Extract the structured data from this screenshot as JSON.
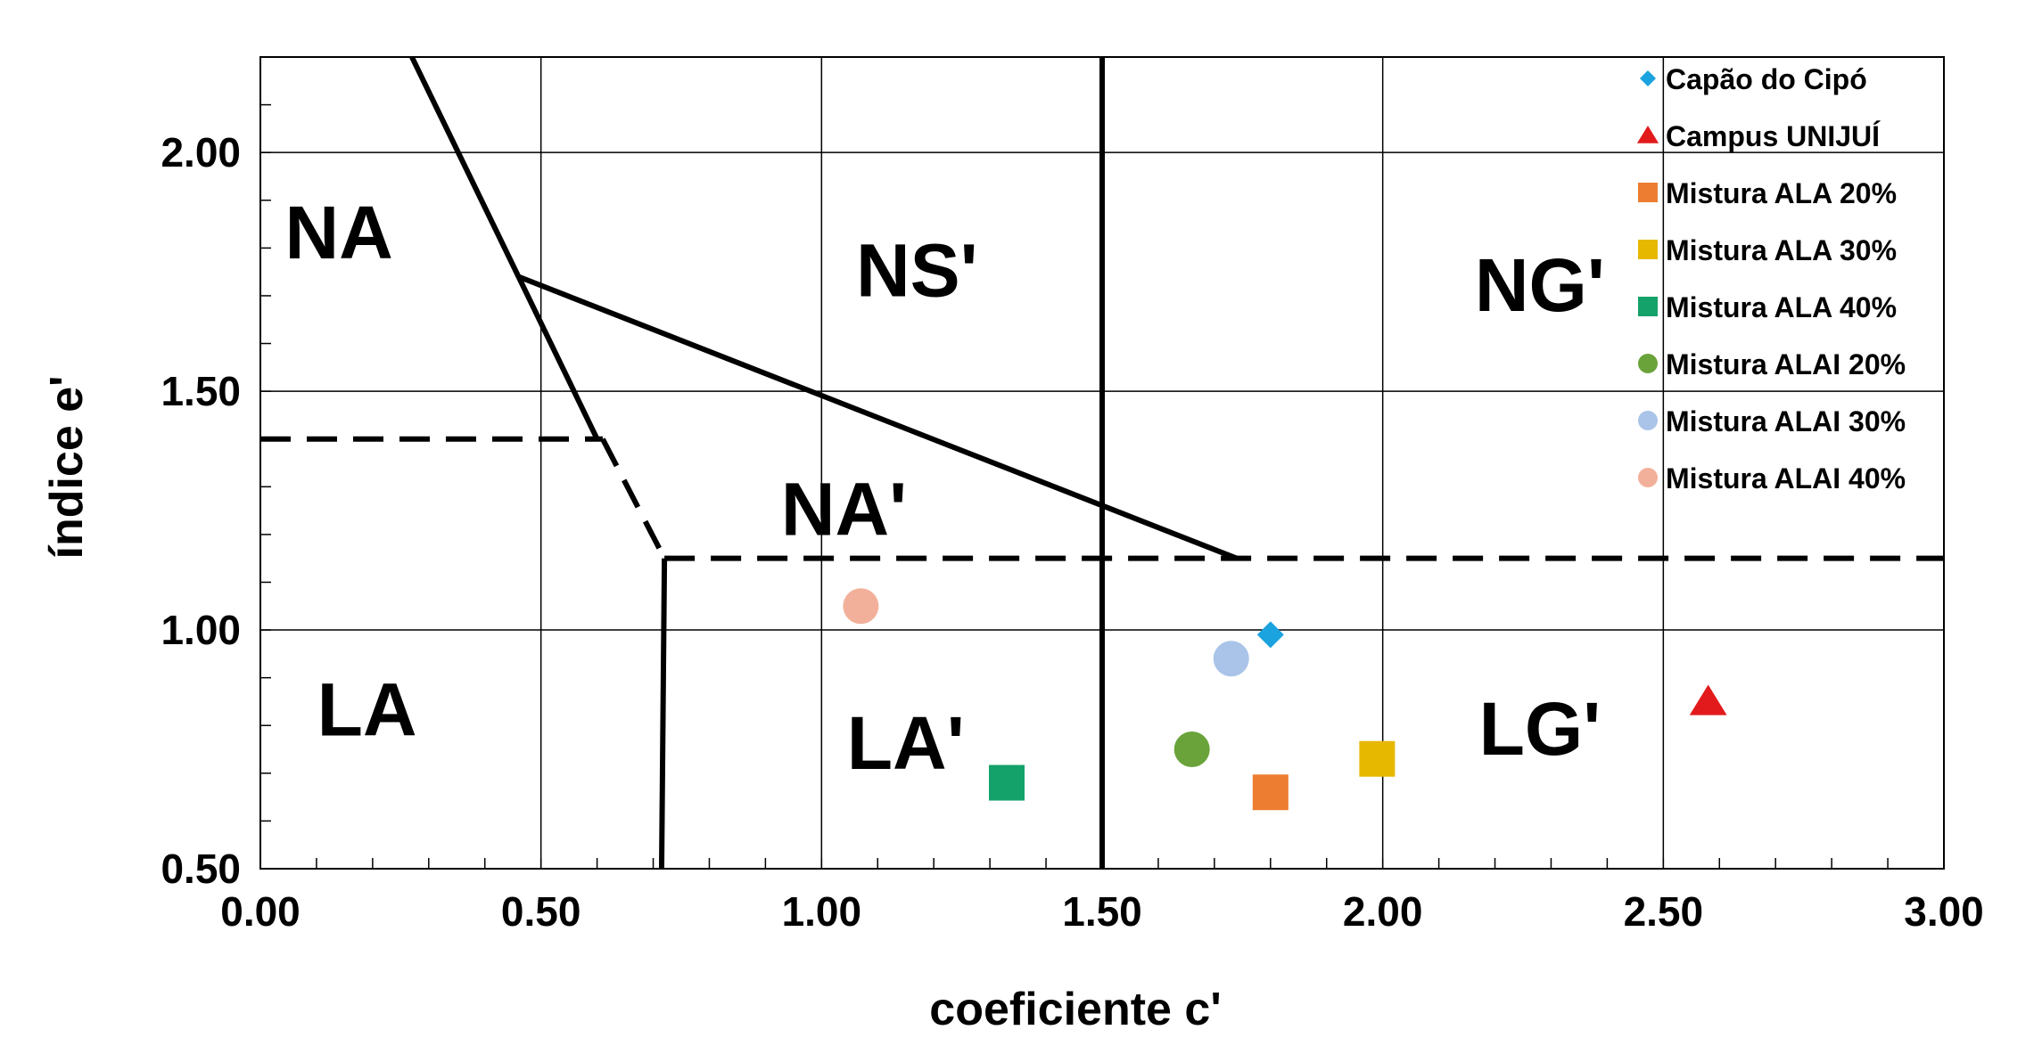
{
  "chart_data": {
    "type": "scatter",
    "title": "",
    "xlabel": "coeficiente c'",
    "ylabel": "índice e'",
    "xlim": [
      0,
      3
    ],
    "ylim": [
      0.5,
      2.2
    ],
    "x_ticks": [
      "0.00",
      "0.50",
      "1.00",
      "1.50",
      "2.00",
      "2.50",
      "3.00"
    ],
    "y_ticks": [
      "0.50",
      "1.00",
      "1.50",
      "2.00"
    ],
    "x_tick_values": [
      0,
      0.5,
      1.0,
      1.5,
      2.0,
      2.5,
      3.0
    ],
    "y_tick_values": [
      0.5,
      1.0,
      1.5,
      2.0
    ],
    "grid": true,
    "legend_position": "top-right",
    "regions": [
      {
        "label": "NA",
        "x": 0.14,
        "y": 1.82
      },
      {
        "label": "NS'",
        "x": 1.17,
        "y": 1.74
      },
      {
        "label": "NG'",
        "x": 2.28,
        "y": 1.71
      },
      {
        "label": "NA'",
        "x": 1.04,
        "y": 1.24
      },
      {
        "label": "LA",
        "x": 0.19,
        "y": 0.82
      },
      {
        "label": "LA'",
        "x": 1.15,
        "y": 0.75
      },
      {
        "label": "LG'",
        "x": 2.28,
        "y": 0.78
      }
    ],
    "boundaries": {
      "solid": [
        [
          [
            0.27,
            2.2
          ],
          [
            0.46,
            1.74
          ],
          [
            0.6,
            1.4
          ]
        ],
        [
          [
            0.46,
            1.74
          ],
          [
            1.74,
            1.15
          ]
        ],
        [
          [
            0.72,
            1.15
          ],
          [
            0.715,
            0.5
          ]
        ],
        [
          [
            1.5,
            2.2
          ],
          [
            1.5,
            0.5
          ]
        ]
      ],
      "dashed": [
        [
          [
            0.0,
            1.4
          ],
          [
            0.61,
            1.4
          ]
        ],
        [
          [
            0.61,
            1.4
          ],
          [
            0.72,
            1.15
          ]
        ],
        [
          [
            0.72,
            1.15
          ],
          [
            3.0,
            1.15
          ]
        ]
      ]
    },
    "series": [
      {
        "name": "Capão do Cipó",
        "marker": "diamond",
        "color": "#1ba3e0",
        "x": [
          1.8
        ],
        "y": [
          0.99
        ]
      },
      {
        "name": "Campus UNIJUÍ",
        "marker": "triangle",
        "color": "#e31a1c",
        "x": [
          2.58
        ],
        "y": [
          0.85
        ]
      },
      {
        "name": "Mistura ALA 20%",
        "marker": "square",
        "color": "#ed7d31",
        "x": [
          1.8
        ],
        "y": [
          0.66
        ]
      },
      {
        "name": "Mistura ALA 30%",
        "marker": "square",
        "color": "#e6b800",
        "x": [
          1.99
        ],
        "y": [
          0.73
        ]
      },
      {
        "name": "Mistura ALA 40%",
        "marker": "square",
        "color": "#14a16a",
        "x": [
          1.33
        ],
        "y": [
          0.68
        ]
      },
      {
        "name": "Mistura ALAI 20%",
        "marker": "circle",
        "color": "#6aa33a",
        "x": [
          1.66
        ],
        "y": [
          0.75
        ]
      },
      {
        "name": "Mistura ALAI 30%",
        "marker": "circle",
        "color": "#a9c4e8",
        "x": [
          1.73
        ],
        "y": [
          0.94
        ]
      },
      {
        "name": "Mistura ALAI 40%",
        "marker": "circle",
        "color": "#f2b09a",
        "x": [
          1.07
        ],
        "y": [
          1.05
        ]
      }
    ]
  }
}
